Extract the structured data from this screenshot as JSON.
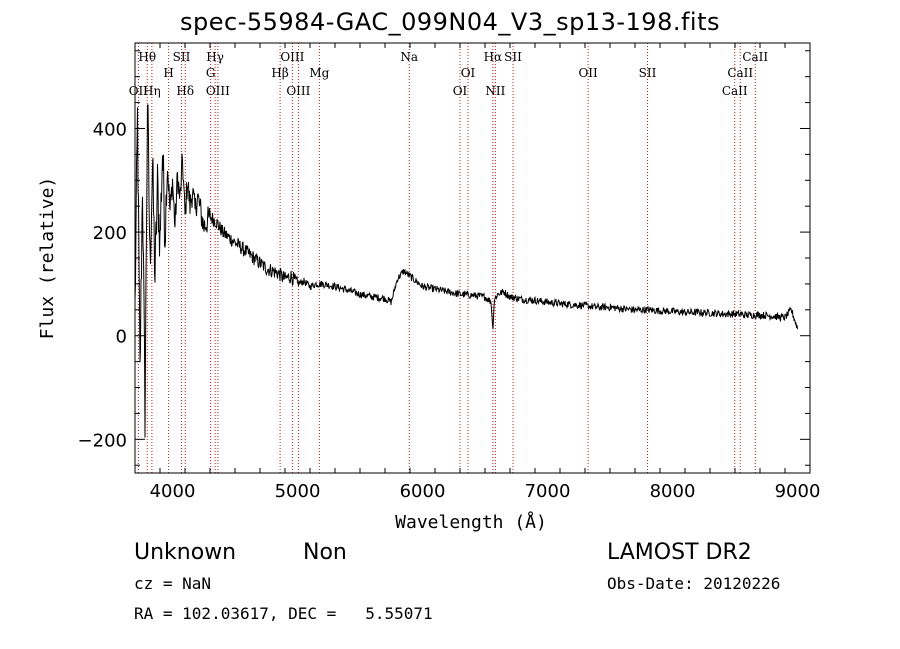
{
  "title": "spec-55984-GAC_099N04_V3_sp13-198.fits",
  "info": {
    "class": "Unknown",
    "subclass": "Non",
    "cz": "cz = NaN",
    "radec": "RA = 102.03617, DEC =   5.55071",
    "survey": "LAMOST DR2",
    "obsdate": "Obs-Date: 20120226"
  },
  "chart_data": {
    "type": "line",
    "title": "spec-55984-GAC_099N04_V3_sp13-198.fits",
    "xlabel": "Wavelength (Å)",
    "ylabel": "Flux (relative)",
    "xlim": [
      3700,
      9100
    ],
    "ylim": [
      -265,
      565
    ],
    "xticks": [
      4000,
      5000,
      6000,
      7000,
      8000,
      9000
    ],
    "yticks": [
      -200,
      0,
      200,
      400
    ],
    "line_color": "#000000",
    "marker_color": "#b02020",
    "series": [
      {
        "x": [
          3700,
          3720,
          3740,
          3760,
          3780,
          3800,
          3820,
          3840,
          3860,
          3880,
          3900,
          3920,
          3940,
          3960,
          3980,
          4000,
          4020,
          4040,
          4060,
          4080,
          4100,
          4120,
          4140,
          4160,
          4180,
          4200,
          4250,
          4300,
          4350,
          4400,
          4450,
          4500,
          4550,
          4600,
          4650,
          4700,
          4750,
          4800,
          4850,
          4900,
          4950,
          5000,
          5050,
          5100,
          5150,
          5200,
          5300,
          5400,
          5500,
          5600,
          5700,
          5750,
          5800,
          5850,
          5900,
          5950,
          6000,
          6100,
          6200,
          6300,
          6400,
          6500,
          6550,
          6562,
          6575,
          6600,
          6650,
          6700,
          6800,
          6900,
          7000,
          7100,
          7200,
          7300,
          7400,
          7500,
          7600,
          7700,
          7800,
          7900,
          8000,
          8100,
          8200,
          8300,
          8400,
          8500,
          8600,
          8700,
          8800,
          8850,
          8900,
          8950,
          9000
        ],
        "y": [
          50,
          420,
          -80,
          300,
          -150,
          460,
          140,
          330,
          110,
          290,
          180,
          360,
          200,
          330,
          240,
          300,
          210,
          310,
          260,
          340,
          230,
          300,
          250,
          280,
          240,
          270,
          210,
          230,
          220,
          200,
          190,
          180,
          170,
          160,
          150,
          140,
          130,
          125,
          120,
          110,
          115,
          100,
          105,
          95,
          100,
          100,
          95,
          88,
          80,
          75,
          72,
          65,
          110,
          125,
          115,
          105,
          95,
          90,
          85,
          80,
          78,
          75,
          65,
          10,
          70,
          80,
          85,
          75,
          70,
          68,
          65,
          62,
          60,
          58,
          55,
          55,
          52,
          50,
          50,
          48,
          47,
          45,
          45,
          44,
          42,
          42,
          40,
          40,
          38,
          36,
          35,
          50,
          15
        ]
      }
    ],
    "lines": [
      {
        "name": "Hθ",
        "wave": 3798,
        "row": 0
      },
      {
        "name": "OII",
        "wave": 3727,
        "row": 2
      },
      {
        "name": "Hη",
        "wave": 3835,
        "row": 2
      },
      {
        "name": "H",
        "wave": 3969,
        "row": 1
      },
      {
        "name": "SII",
        "wave": 4072,
        "row": 0
      },
      {
        "name": "Hδ",
        "wave": 4102,
        "row": 2
      },
      {
        "name": "Hγ",
        "wave": 4341,
        "row": 0
      },
      {
        "name": "G",
        "wave": 4305,
        "row": 1
      },
      {
        "name": "OIII",
        "wave": 4363,
        "row": 2
      },
      {
        "name": "OIII",
        "wave": 4959,
        "row": 0
      },
      {
        "name": "Hβ",
        "wave": 4861,
        "row": 1
      },
      {
        "name": "OIII",
        "wave": 5007,
        "row": 2
      },
      {
        "name": "Mg",
        "wave": 5175,
        "row": 1
      },
      {
        "name": "Na",
        "wave": 5894,
        "row": 0
      },
      {
        "name": "OI",
        "wave": 6364,
        "row": 1
      },
      {
        "name": "OI",
        "wave": 6300,
        "row": 2
      },
      {
        "name": "Hα",
        "wave": 6563,
        "row": 0
      },
      {
        "name": "SII",
        "wave": 6724,
        "row": 0
      },
      {
        "name": "NII",
        "wave": 6583,
        "row": 2
      },
      {
        "name": "OII",
        "wave": 7325,
        "row": 1
      },
      {
        "name": "SII",
        "wave": 7800,
        "row": 1
      },
      {
        "name": "CaII",
        "wave": 8662,
        "row": 0
      },
      {
        "name": "CaII",
        "wave": 8542,
        "row": 1
      },
      {
        "name": "CaII",
        "wave": 8498,
        "row": 2
      }
    ]
  }
}
